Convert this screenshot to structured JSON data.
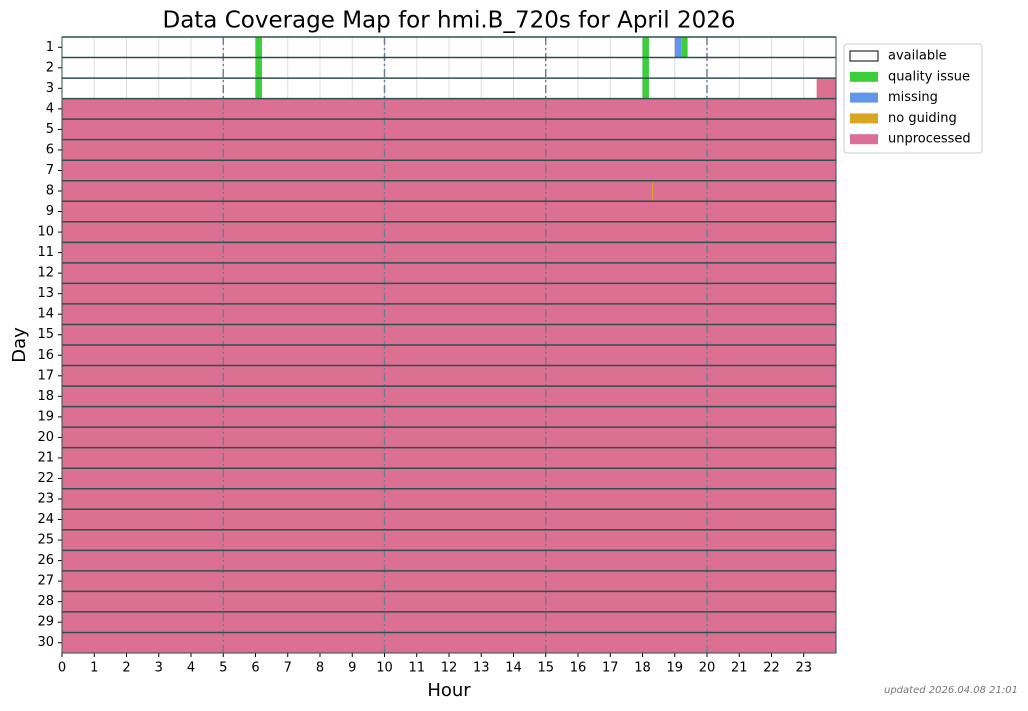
{
  "chart_data": {
    "type": "coverage",
    "title": "Data Coverage Map for hmi.B_720s for April 2026",
    "x_label": "Hour",
    "y_label": "Day",
    "footnote": "updated 2026.04.08 21:01",
    "xlim": [
      0,
      24
    ],
    "xticks": [
      0,
      1,
      2,
      3,
      4,
      5,
      6,
      7,
      8,
      9,
      10,
      11,
      12,
      13,
      14,
      15,
      16,
      17,
      18,
      19,
      20,
      21,
      22,
      23
    ],
    "major_xticks": [
      5,
      10,
      15,
      20
    ],
    "categories": [
      "1",
      "2",
      "3",
      "4",
      "5",
      "6",
      "7",
      "8",
      "9",
      "10",
      "11",
      "12",
      "13",
      "14",
      "15",
      "16",
      "17",
      "18",
      "19",
      "20",
      "21",
      "22",
      "23",
      "24",
      "25",
      "26",
      "27",
      "28",
      "29",
      "30"
    ],
    "series": [
      {
        "name": "available",
        "color": "#ffffff"
      },
      {
        "name": "quality issue",
        "color": "#3ccf3c"
      },
      {
        "name": "missing",
        "color": "#6495ed"
      },
      {
        "name": "no guiding",
        "color": "#daa520"
      },
      {
        "name": "unprocessed",
        "color": "#db7093"
      }
    ],
    "segments": [
      [
        {
          "status": "available",
          "start": 0,
          "end": 24
        },
        {
          "status": "quality issue",
          "start": 6.0,
          "end": 6.2
        },
        {
          "status": "quality issue",
          "start": 18.0,
          "end": 18.2
        },
        {
          "status": "missing",
          "start": 19.0,
          "end": 19.2
        },
        {
          "status": "quality issue",
          "start": 19.2,
          "end": 19.4
        }
      ],
      [
        {
          "status": "available",
          "start": 0,
          "end": 24
        },
        {
          "status": "quality issue",
          "start": 6.0,
          "end": 6.2
        },
        {
          "status": "quality issue",
          "start": 18.0,
          "end": 18.2
        }
      ],
      [
        {
          "status": "available",
          "start": 0,
          "end": 24
        },
        {
          "status": "quality issue",
          "start": 6.0,
          "end": 6.2
        },
        {
          "status": "quality issue",
          "start": 18.0,
          "end": 18.2
        },
        {
          "status": "unprocessed",
          "start": 23.4,
          "end": 24
        }
      ],
      [
        {
          "status": "unprocessed",
          "start": 0,
          "end": 24
        }
      ],
      [
        {
          "status": "unprocessed",
          "start": 0,
          "end": 24
        }
      ],
      [
        {
          "status": "unprocessed",
          "start": 0,
          "end": 24
        }
      ],
      [
        {
          "status": "unprocessed",
          "start": 0,
          "end": 24
        }
      ],
      [
        {
          "status": "unprocessed",
          "start": 0,
          "end": 24
        },
        {
          "status": "no guiding",
          "start": 18.3,
          "end": 18.33
        }
      ],
      [
        {
          "status": "unprocessed",
          "start": 0,
          "end": 24
        }
      ],
      [
        {
          "status": "unprocessed",
          "start": 0,
          "end": 24
        }
      ],
      [
        {
          "status": "unprocessed",
          "start": 0,
          "end": 24
        }
      ],
      [
        {
          "status": "unprocessed",
          "start": 0,
          "end": 24
        }
      ],
      [
        {
          "status": "unprocessed",
          "start": 0,
          "end": 24
        }
      ],
      [
        {
          "status": "unprocessed",
          "start": 0,
          "end": 24
        }
      ],
      [
        {
          "status": "unprocessed",
          "start": 0,
          "end": 24
        }
      ],
      [
        {
          "status": "unprocessed",
          "start": 0,
          "end": 24
        }
      ],
      [
        {
          "status": "unprocessed",
          "start": 0,
          "end": 24
        }
      ],
      [
        {
          "status": "unprocessed",
          "start": 0,
          "end": 24
        }
      ],
      [
        {
          "status": "unprocessed",
          "start": 0,
          "end": 24
        }
      ],
      [
        {
          "status": "unprocessed",
          "start": 0,
          "end": 24
        }
      ],
      [
        {
          "status": "unprocessed",
          "start": 0,
          "end": 24
        }
      ],
      [
        {
          "status": "unprocessed",
          "start": 0,
          "end": 24
        }
      ],
      [
        {
          "status": "unprocessed",
          "start": 0,
          "end": 24
        }
      ],
      [
        {
          "status": "unprocessed",
          "start": 0,
          "end": 24
        }
      ],
      [
        {
          "status": "unprocessed",
          "start": 0,
          "end": 24
        }
      ],
      [
        {
          "status": "unprocessed",
          "start": 0,
          "end": 24
        }
      ],
      [
        {
          "status": "unprocessed",
          "start": 0,
          "end": 24
        }
      ],
      [
        {
          "status": "unprocessed",
          "start": 0,
          "end": 24
        }
      ],
      [
        {
          "status": "unprocessed",
          "start": 0,
          "end": 24
        }
      ],
      [
        {
          "status": "unprocessed",
          "start": 0,
          "end": 24
        }
      ]
    ]
  }
}
